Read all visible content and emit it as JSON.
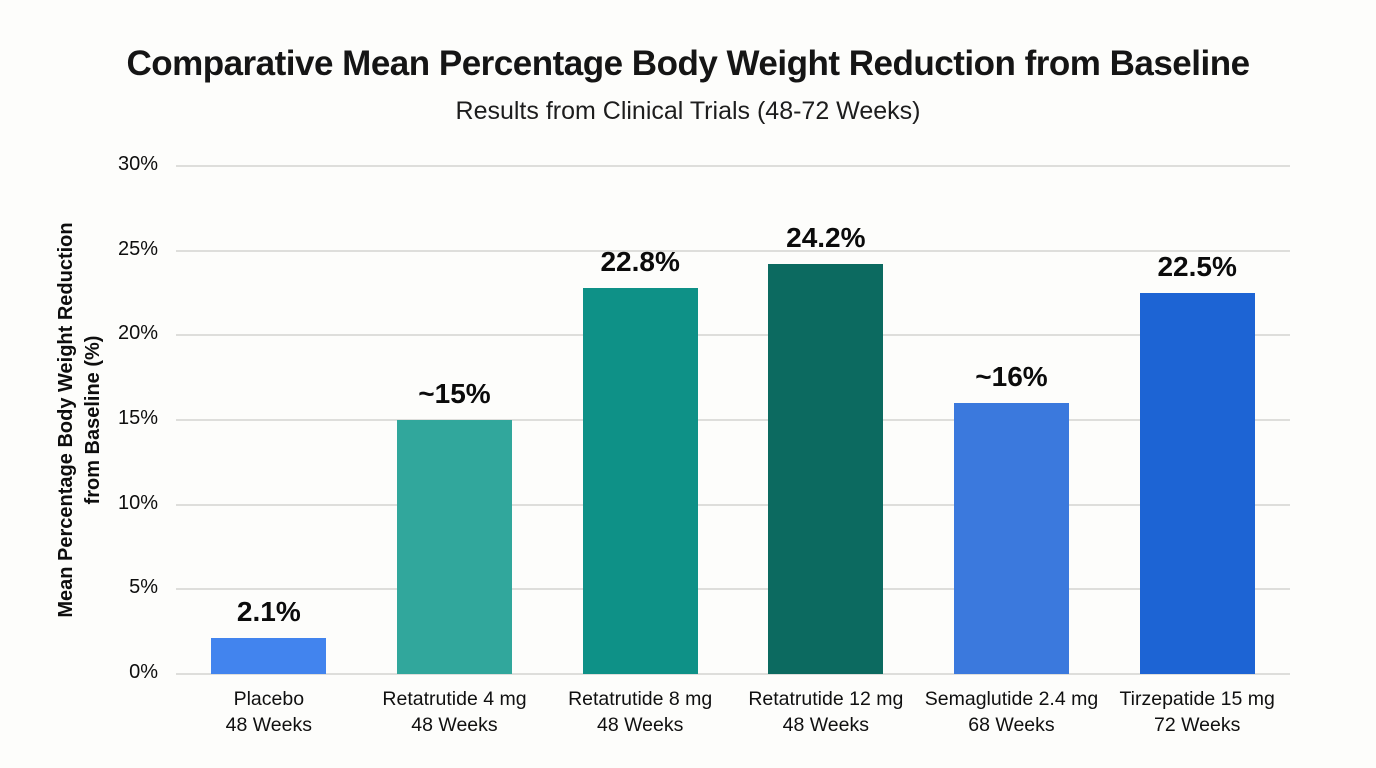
{
  "header": {
    "title": "Comparative Mean Percentage Body Weight Reduction from Baseline",
    "subtitle": "Results from Clinical Trials (48-72 Weeks)"
  },
  "chart_data": {
    "type": "bar",
    "title": "Comparative Mean Percentage Body Weight Reduction from Baseline",
    "subtitle": "Results from Clinical Trials (48-72 Weeks)",
    "ylabel_line1": "Mean Percentage Body Weight Reduction",
    "ylabel_line2": "from Baseline (%)",
    "xlabel": "",
    "ylim": [
      0,
      30
    ],
    "yticks": [
      0,
      5,
      10,
      15,
      20,
      25,
      30
    ],
    "ytick_labels": [
      "0%",
      "5%",
      "10%",
      "15%",
      "20%",
      "25%",
      "30%"
    ],
    "grid": true,
    "legend": "none",
    "categories": [
      "Placebo\n48 Weeks",
      "Retatrutide 4 mg\n48 Weeks",
      "Retatrutide 8 mg\n48 Weeks",
      "Retatrutide 12 mg\n48 Weeks",
      "Semaglutide 2.4 mg\n68 Weeks",
      "Tirzepatide 15 mg\n72 Weeks"
    ],
    "values": [
      2.1,
      15,
      22.8,
      24.2,
      16,
      22.5
    ],
    "value_labels": [
      "2.1%",
      "~15%",
      "22.8%",
      "24.2%",
      "~16%",
      "22.5%"
    ],
    "bar_colors": [
      "#4284ee",
      "#31a79c",
      "#0e9187",
      "#0c6a60",
      "#3b79dd",
      "#1d64d4"
    ],
    "gridline_color": "#dededb",
    "background_color": "#fdfdfb",
    "text_color": "#111111"
  }
}
